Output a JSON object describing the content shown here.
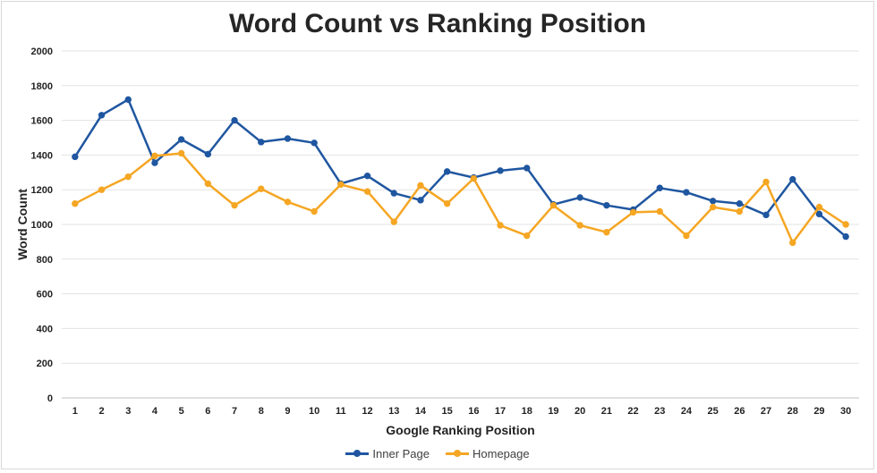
{
  "chart_data": {
    "type": "line",
    "title": "Word Count vs Ranking Position",
    "xlabel": "Google Ranking Position",
    "ylabel": "Word Count",
    "ylim": [
      0,
      2000
    ],
    "yticks": [
      "0",
      "200",
      "400",
      "600",
      "800",
      "1000",
      "1200",
      "1400",
      "1600",
      "1800",
      "2000"
    ],
    "x": [
      1,
      2,
      3,
      4,
      5,
      6,
      7,
      8,
      9,
      10,
      11,
      12,
      13,
      14,
      15,
      16,
      17,
      18,
      19,
      20,
      21,
      22,
      23,
      24,
      25,
      26,
      27,
      28,
      29,
      30
    ],
    "xticks": [
      "1",
      "2",
      "3",
      "4",
      "5",
      "6",
      "7",
      "8",
      "9",
      "10",
      "11",
      "12",
      "13",
      "14",
      "15",
      "16",
      "17",
      "18",
      "19",
      "20",
      "21",
      "22",
      "23",
      "24",
      "25",
      "26",
      "27",
      "28",
      "29",
      "30"
    ],
    "grid": true,
    "legend_position": "bottom",
    "series": [
      {
        "name": "Inner Page",
        "color": "#1f56a0",
        "values": [
          1390,
          1630,
          1720,
          1355,
          1490,
          1405,
          1600,
          1475,
          1495,
          1470,
          1235,
          1280,
          1180,
          1140,
          1305,
          1270,
          1310,
          1325,
          1115,
          1155,
          1110,
          1085,
          1210,
          1185,
          1135,
          1120,
          1055,
          1260,
          1060,
          930
        ]
      },
      {
        "name": "Homepage",
        "color": "#f5a623",
        "values": [
          1120,
          1200,
          1275,
          1395,
          1410,
          1235,
          1110,
          1205,
          1130,
          1075,
          1230,
          1190,
          1015,
          1225,
          1120,
          1265,
          995,
          935,
          1110,
          995,
          955,
          1070,
          1075,
          935,
          1100,
          1075,
          1245,
          895,
          1100,
          1000
        ]
      }
    ]
  }
}
